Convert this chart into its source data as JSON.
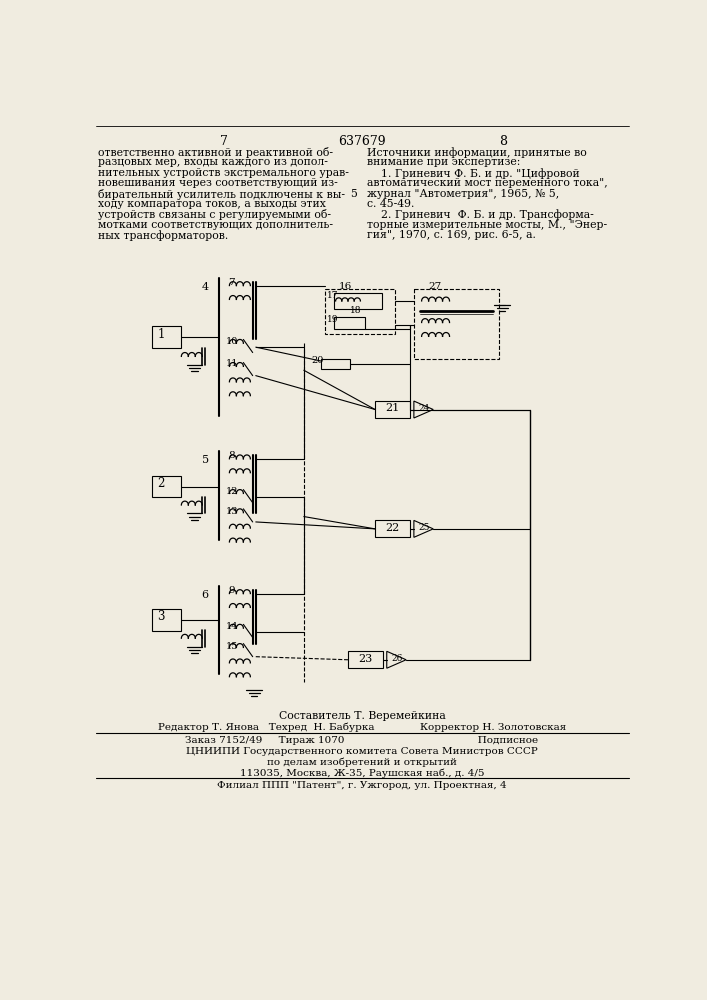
{
  "page_number_left": "7",
  "page_number_center": "637679",
  "page_number_right": "8",
  "left_column_text": [
    "ответственно активной и реактивной об-",
    "разцовых мер, входы каждого из допол-",
    "нительных устройств экстремального урав-",
    "новешивания через соответствующий из-",
    "бирательный усилитель подключены к вы-",
    "ходу компаратора токов, а выходы этих",
    "устройств связаны с регулируемыми об-",
    "мотками соответствующих дополнитель-",
    "ных трансформаторов."
  ],
  "right_column_text": [
    "Источники информации, принятые во",
    "внимание при экспертизе:",
    "    1. Гриневич Ф. Б. и др. \"Цифровой",
    "автоматический мост переменного тока\",",
    "журнал \"Автометрия\", 1965, № 5,",
    "с. 45-49.",
    "    2. Гриневич  Ф. Б. и др. Трансформа-",
    "торные измерительные мосты, М., \"Энер-",
    "гия\", 1970, с. 169, рис. 6-5, а."
  ],
  "composer_text": "Составитель Т. Веремейкина",
  "editor_text": "Редактор Т. Янова   Техред  Н. Бабурка              Корректор Н. Золотовская",
  "order_text": "Заказ 7152/49     Тираж 1070                                         Подписное",
  "org_text1": "ЦНИИПИ Государственного комитета Совета Министров СССР",
  "org_text2": "по делам изобретений и открытий",
  "org_text3": "113035, Москва, Ж-35, Раушская наб., д. 4/5",
  "branch_text": "Филиал ППП \"Патент\", г. Ужгород, ул. Проектная, 4",
  "bg_color": "#f0ece0"
}
